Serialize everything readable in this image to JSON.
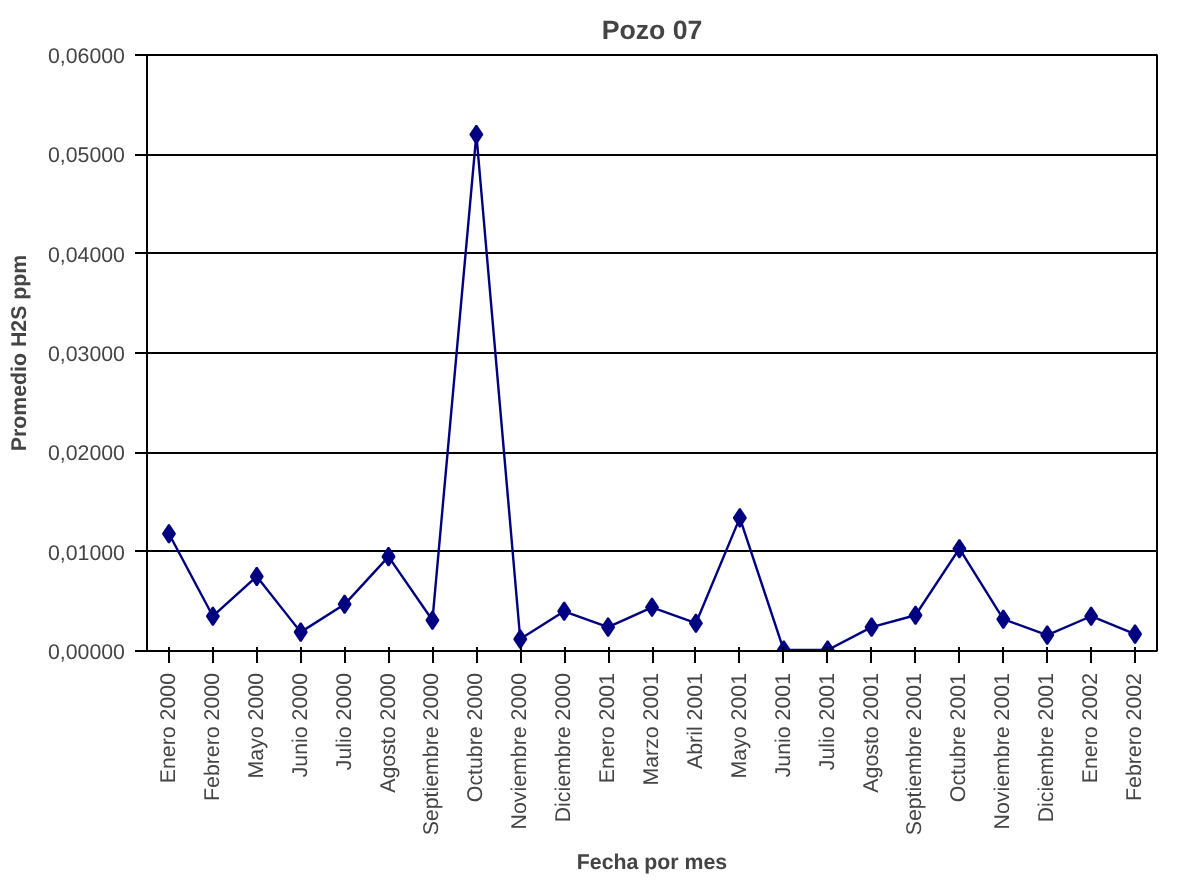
{
  "chart_data": {
    "type": "line",
    "title": "Pozo 07",
    "xlabel": "Fecha por mes",
    "ylabel": "Promedio H2S ppm",
    "categories": [
      "Enero 2000",
      "Febrero 2000",
      "Mayo 2000",
      "Junio 2000",
      "Julio 2000",
      "Agosto 2000",
      "Septiembre 2000",
      "Octubre 2000",
      "Noviembre 2000",
      "Diciembre 2000",
      "Enero 2001",
      "Marzo 2001",
      "Abril 2001",
      "Mayo 2001",
      "Junio 2001",
      "Julio 2001",
      "Agosto 2001",
      "Septiembre 2001",
      "Octubre 2001",
      "Noviembre 2001",
      "Diciembre 2001",
      "Enero 2002",
      "Febrero 2002"
    ],
    "series": [
      {
        "color": "#000080",
        "values": [
          0.0118,
          0.0035,
          0.0075,
          0.0019,
          0.0047,
          0.0095,
          0.0031,
          0.052,
          0.0012,
          0.004,
          0.0024,
          0.0044,
          0.0028,
          0.0134,
          0.0001,
          0.0001,
          0.0024,
          0.0036,
          0.0103,
          0.0032,
          0.0016,
          0.0035,
          0.0017
        ]
      }
    ],
    "ylim": [
      0,
      0.06
    ],
    "yticks": [
      {
        "value": 0,
        "label": "0,00000"
      },
      {
        "value": 0.01,
        "label": "0,01000"
      },
      {
        "value": 0.02,
        "label": "0,02000"
      },
      {
        "value": 0.03,
        "label": "0,03000"
      },
      {
        "value": 0.04,
        "label": "0,04000"
      },
      {
        "value": 0.05,
        "label": "0,05000"
      },
      {
        "value": 0.06,
        "label": "0,06000"
      }
    ],
    "grid": "y",
    "marker": "diamond",
    "line_style": "solid"
  }
}
